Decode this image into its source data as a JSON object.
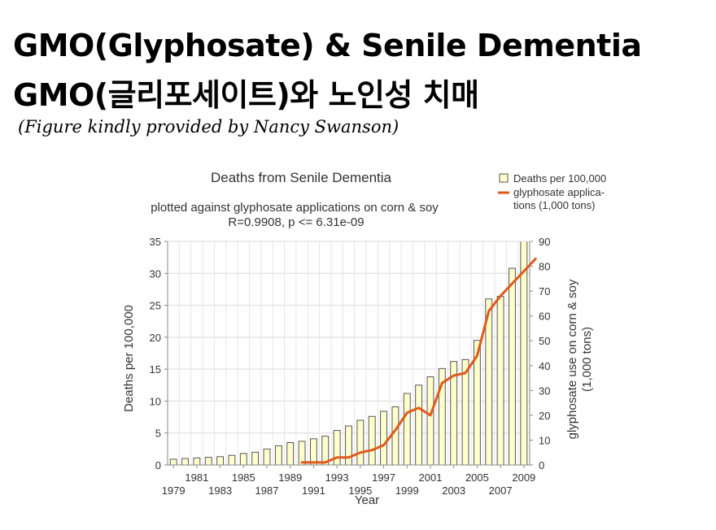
{
  "slide": {
    "title_en": "GMO(Glyphosate) & Senile Dementia",
    "title_ko": "GMO(글리포세이트)와 노인성 치매",
    "credit": "(Figure kindly provided by Nancy Swanson)"
  },
  "chart_data": {
    "type": "bar",
    "title": "Deaths from Senile Dementia",
    "subtitle": "plotted against glyphosate applications on corn & soy",
    "stats": "R=0.9908, p <= 6.31e-09",
    "xlabel": "Year",
    "ylabel": "Deaths per 100,000",
    "y2label_line1": "glyphosate use on corn & soy",
    "y2label_line2": "(1,000 tons)",
    "ylim": [
      0,
      35
    ],
    "y2lim": [
      0,
      90
    ],
    "yticks": [
      0,
      5,
      10,
      15,
      20,
      25,
      30,
      35
    ],
    "y2ticks": [
      0,
      10,
      20,
      30,
      40,
      50,
      60,
      70,
      80,
      90
    ],
    "x_ticks_upper": [
      "1981",
      "1985",
      "1989",
      "1993",
      "1997",
      "2001",
      "2005",
      "2009"
    ],
    "x_ticks_lower": [
      "1979",
      "1983",
      "1987",
      "1991",
      "1995",
      "1999",
      "2003",
      "2007"
    ],
    "grid": true,
    "legend_position": "top-right",
    "bar_color": "#ffffcc",
    "line_color": "#e05a1b",
    "categories": [
      1979,
      1980,
      1981,
      1982,
      1983,
      1984,
      1985,
      1986,
      1987,
      1988,
      1989,
      1990,
      1991,
      1992,
      1993,
      1994,
      1995,
      1996,
      1997,
      1998,
      1999,
      2000,
      2001,
      2002,
      2003,
      2004,
      2005,
      2006,
      2007,
      2008,
      2009
    ],
    "series": [
      {
        "name": "Deaths per 100,000",
        "type": "bar",
        "axis": "left",
        "values": [
          0.9,
          1.0,
          1.1,
          1.2,
          1.3,
          1.5,
          1.8,
          2.0,
          2.5,
          3.0,
          3.5,
          3.7,
          4.1,
          4.5,
          5.4,
          6.1,
          7.0,
          7.6,
          8.4,
          9.1,
          11.2,
          12.5,
          13.8,
          15.1,
          16.2,
          16.5,
          19.5,
          26.0,
          26.4,
          30.8,
          35.0
        ]
      },
      {
        "name": "glyphosate applica- tions (1,000 tons)",
        "legend_line1": "glyphosate applica-",
        "legend_line2": "tions (1,000 tons)",
        "type": "line",
        "axis": "right",
        "x": [
          1990,
          1991,
          1992,
          1993,
          1994,
          1995,
          1996,
          1997,
          1998,
          1999,
          2000,
          2001,
          2002,
          2003,
          2004,
          2005,
          2006,
          2007,
          2008,
          2009,
          2010
        ],
        "values": [
          1,
          1,
          1,
          3,
          3,
          5,
          6,
          8,
          14,
          21,
          23,
          20,
          33,
          36,
          37,
          44,
          62,
          68,
          73,
          78,
          83
        ]
      }
    ]
  }
}
